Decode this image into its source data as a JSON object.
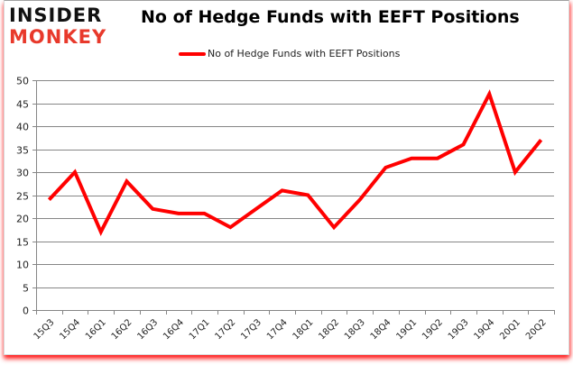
{
  "brand": {
    "line1": "INSIDER",
    "line2": "MONKEY",
    "line1_color": "#111111",
    "line2_color": "#e8392b"
  },
  "chart_data": {
    "type": "line",
    "title": "No of Hedge Funds with EEFT Positions",
    "xlabel": "",
    "ylabel": "",
    "categories": [
      "15Q3",
      "15Q4",
      "16Q1",
      "16Q2",
      "16Q3",
      "16Q4",
      "17Q1",
      "17Q2",
      "17Q3",
      "17Q4",
      "18Q1",
      "18Q2",
      "18Q3",
      "18Q4",
      "19Q1",
      "19Q2",
      "19Q3",
      "19Q4",
      "20Q1",
      "20Q2"
    ],
    "series": [
      {
        "name": "No of Hedge Funds with EEFT Positions",
        "color": "#ff0000",
        "values": [
          24,
          30,
          17,
          28,
          22,
          21,
          21,
          18,
          22,
          26,
          25,
          18,
          24,
          31,
          33,
          33,
          36,
          47,
          30,
          37
        ]
      }
    ],
    "ylim": [
      0,
      50
    ],
    "yticks": [
      0,
      5,
      10,
      15,
      20,
      25,
      30,
      35,
      40,
      45,
      50
    ],
    "grid": true,
    "legend_position": "top"
  }
}
